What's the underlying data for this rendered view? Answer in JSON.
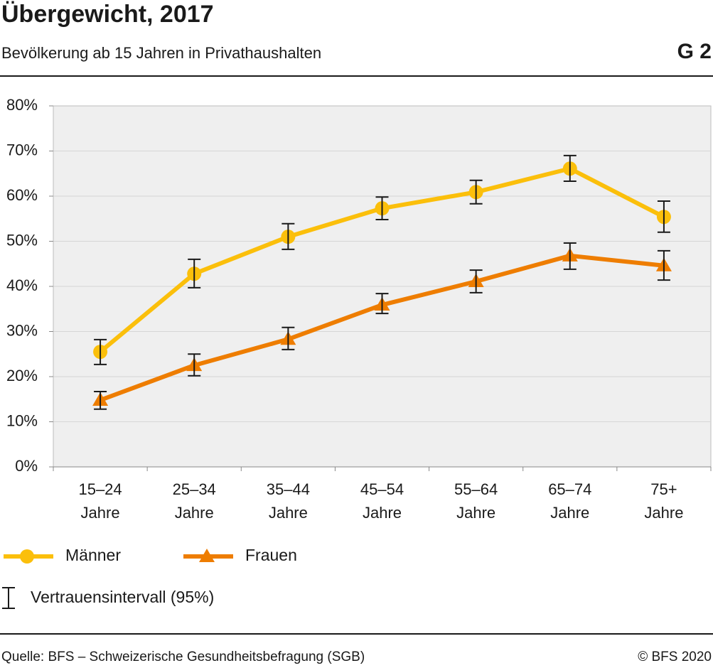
{
  "chart_data": {
    "type": "line",
    "title": "Übergewicht, 2017",
    "subtitle": "Bevölkerung ab 15 Jahren in Privathaushalten",
    "figure_label": "G 2",
    "categories": [
      [
        "15–24",
        "Jahre"
      ],
      [
        "25–34",
        "Jahre"
      ],
      [
        "35–44",
        "Jahre"
      ],
      [
        "45–54",
        "Jahre"
      ],
      [
        "55–64",
        "Jahre"
      ],
      [
        "65–74",
        "Jahre"
      ],
      [
        "75+",
        "Jahre"
      ]
    ],
    "series": [
      {
        "name": "Männer",
        "color": "#fbbf0b",
        "marker": "circle",
        "values": [
          25.5,
          42.8,
          51.0,
          57.3,
          60.9,
          66.1,
          55.4
        ],
        "ci_low": [
          22.7,
          39.7,
          48.2,
          54.8,
          58.3,
          63.3,
          52.0
        ],
        "ci_high": [
          28.2,
          46.0,
          53.9,
          59.8,
          63.5,
          69.0,
          58.9
        ]
      },
      {
        "name": "Frauen",
        "color": "#ee7d00",
        "marker": "triangle",
        "values": [
          14.8,
          22.5,
          28.3,
          35.9,
          41.1,
          46.8,
          44.6
        ],
        "ci_low": [
          12.8,
          20.2,
          26.0,
          34.0,
          38.6,
          43.8,
          41.4
        ],
        "ci_high": [
          16.7,
          25.0,
          30.9,
          38.4,
          43.6,
          49.6,
          47.9
        ]
      }
    ],
    "ci_label": "Vertrauensintervall (95%)",
    "ylim": [
      0,
      80
    ],
    "yticks": [
      {
        "value": 0,
        "label": "0%"
      },
      {
        "value": 10,
        "label": "10%"
      },
      {
        "value": 20,
        "label": "20%"
      },
      {
        "value": 30,
        "label": "30%"
      },
      {
        "value": 40,
        "label": "40%"
      },
      {
        "value": 50,
        "label": "50%"
      },
      {
        "value": 60,
        "label": "60%"
      },
      {
        "value": 70,
        "label": "70%"
      },
      {
        "value": 80,
        "label": "80%"
      }
    ],
    "grid": true,
    "source": "Quelle: BFS – Schweizerische Gesundheitsbefragung (SGB)",
    "copyright": "© BFS 2020"
  }
}
